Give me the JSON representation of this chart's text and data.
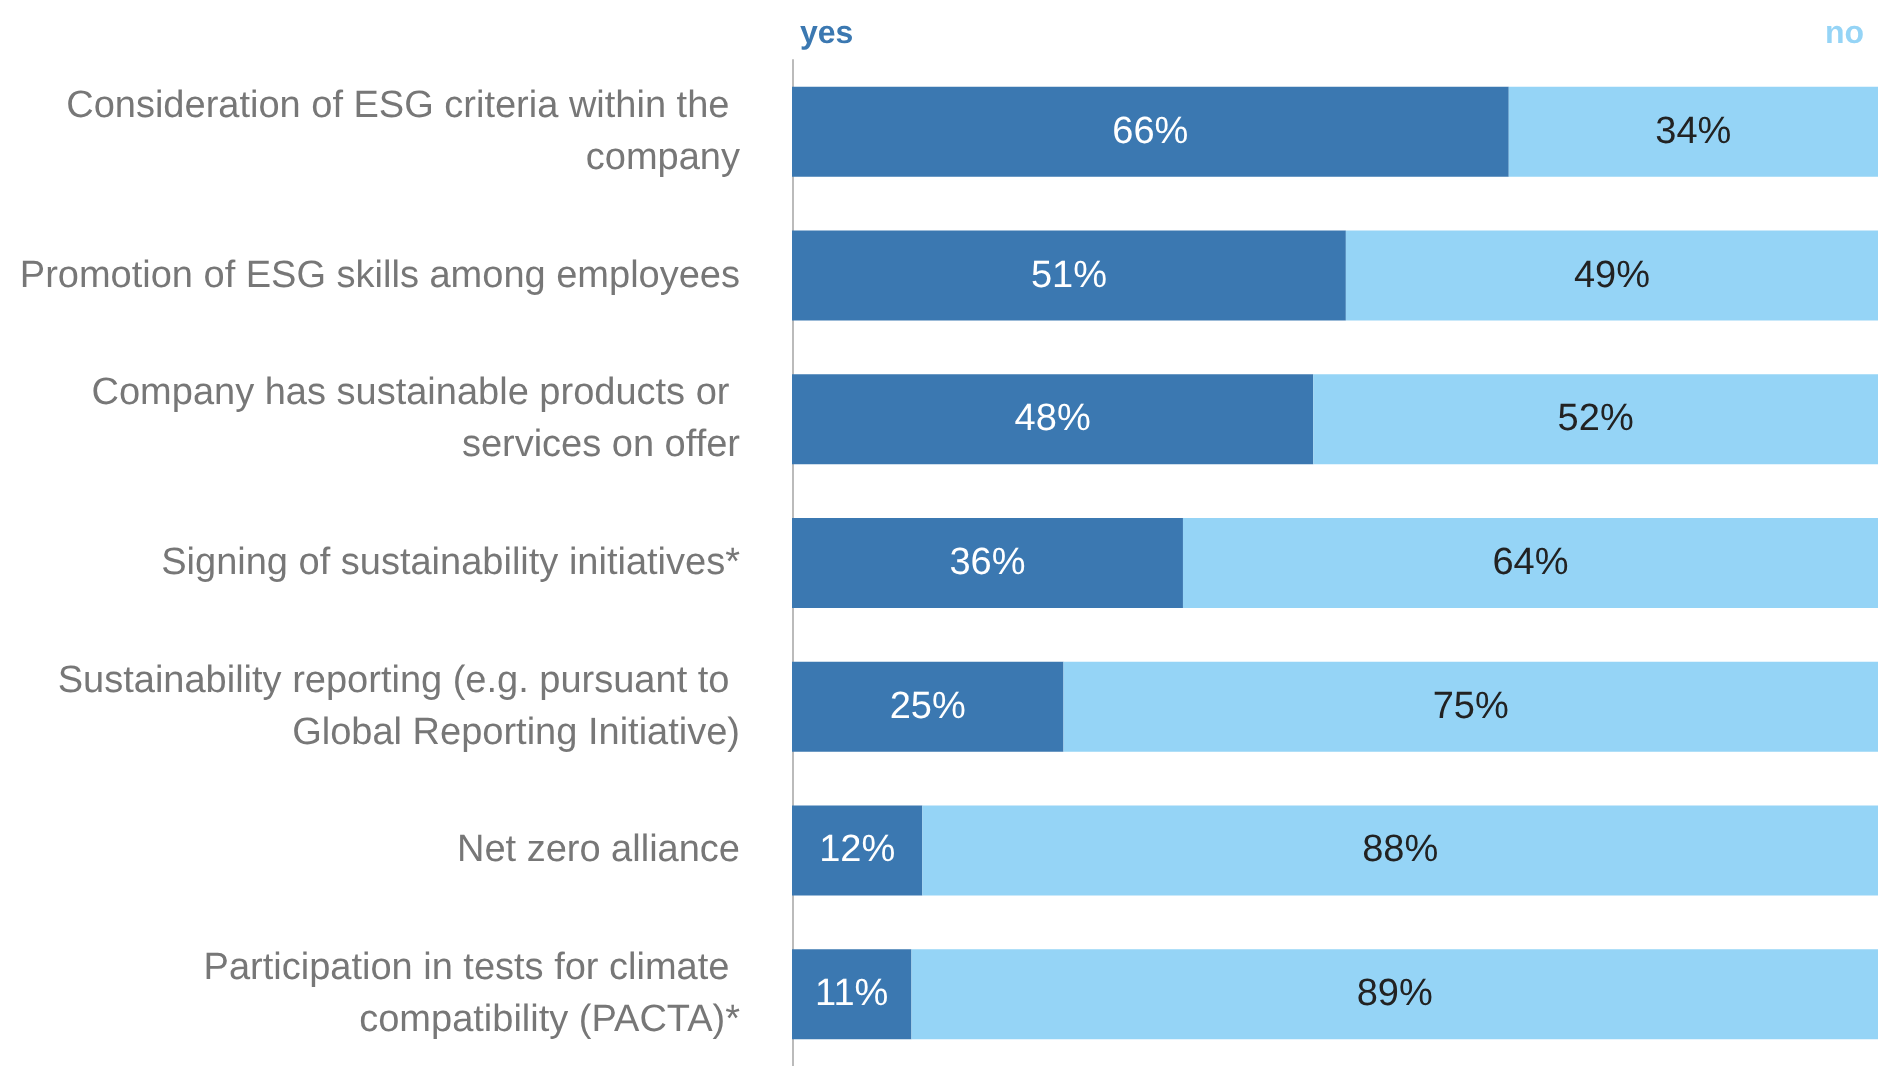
{
  "chart_data": {
    "type": "bar",
    "orientation": "horizontal",
    "stacked": true,
    "legend": "top",
    "categories": [
      "Consideration of ESG criteria within the company",
      "Promotion of ESG skills among employees",
      "Company has sustainable products or services on offer",
      "Signing of sustainability initiatives*",
      "Sustainability reporting (e.g. pursuant to Global Reporting Initiative)",
      "Net zero alliance",
      "Participation in tests for climate compatibility (PACTA)*"
    ],
    "series": [
      {
        "name": "yes",
        "color": "#3b78b1",
        "values": [
          66,
          51,
          48,
          36,
          25,
          12,
          11
        ],
        "value_labels": [
          "66%",
          "51%",
          "48%",
          "36%",
          "25%",
          "12%",
          "11%"
        ]
      },
      {
        "name": "no",
        "color": "#95d4f6",
        "values": [
          34,
          49,
          52,
          64,
          75,
          88,
          89
        ],
        "value_labels": [
          "34%",
          "49%",
          "52%",
          "64%",
          "75%",
          "88%",
          "89%"
        ]
      }
    ]
  }
}
